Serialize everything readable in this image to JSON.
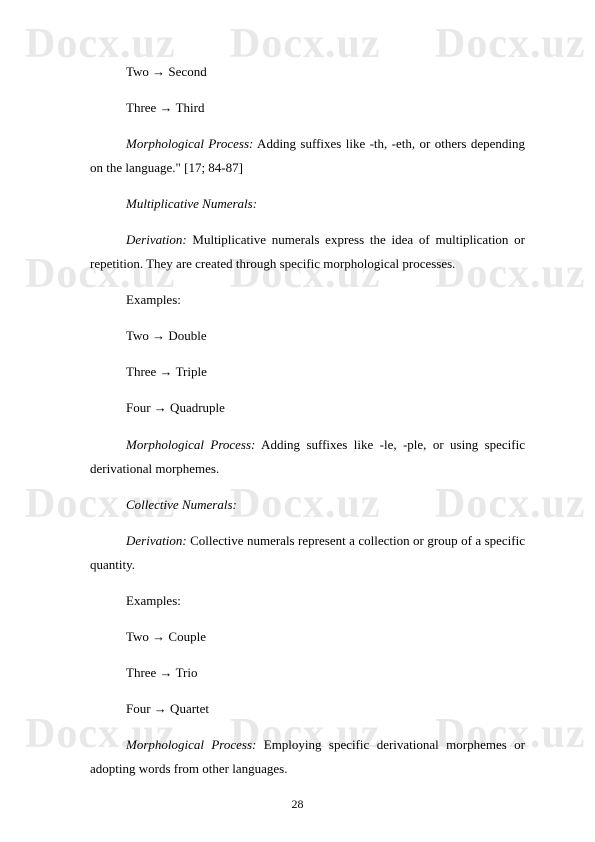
{
  "watermark": {
    "text": "Docx.uz",
    "color": "#e8e8e8",
    "fontSize": 42
  },
  "lines": {
    "l1": "Two → Second",
    "l2": "Three → Third",
    "l3a": "Morphological Process:",
    "l3b": " Adding suffixes like -th, -eth, or others depending on the language.\" [17; 84-87]",
    "l4": "Multiplicative Numerals:",
    "l5a": "Derivation:",
    "l5b": " Multiplicative numerals express the idea of multiplication or repetition. They are created through specific morphological processes.",
    "l6": "Examples:",
    "l7": "Two → Double",
    "l8": "Three → Triple",
    "l9": "Four → Quadruple",
    "l10a": "Morphological Process:",
    "l10b": " Adding suffixes like -le, -ple, or using specific derivational morphemes.",
    "l11": "Collective Numerals:",
    "l12a": "Derivation:",
    "l12b": " Collective numerals represent a collection or group of a specific quantity.",
    "l13": "Examples:",
    "l14": "Two → Couple",
    "l15": "Three → Trio",
    "l16": "Four → Quartet",
    "l17a": "Morphological Process:",
    "l17b": " Employing specific derivational morphemes or adopting words from other languages."
  },
  "pageNumber": "28"
}
